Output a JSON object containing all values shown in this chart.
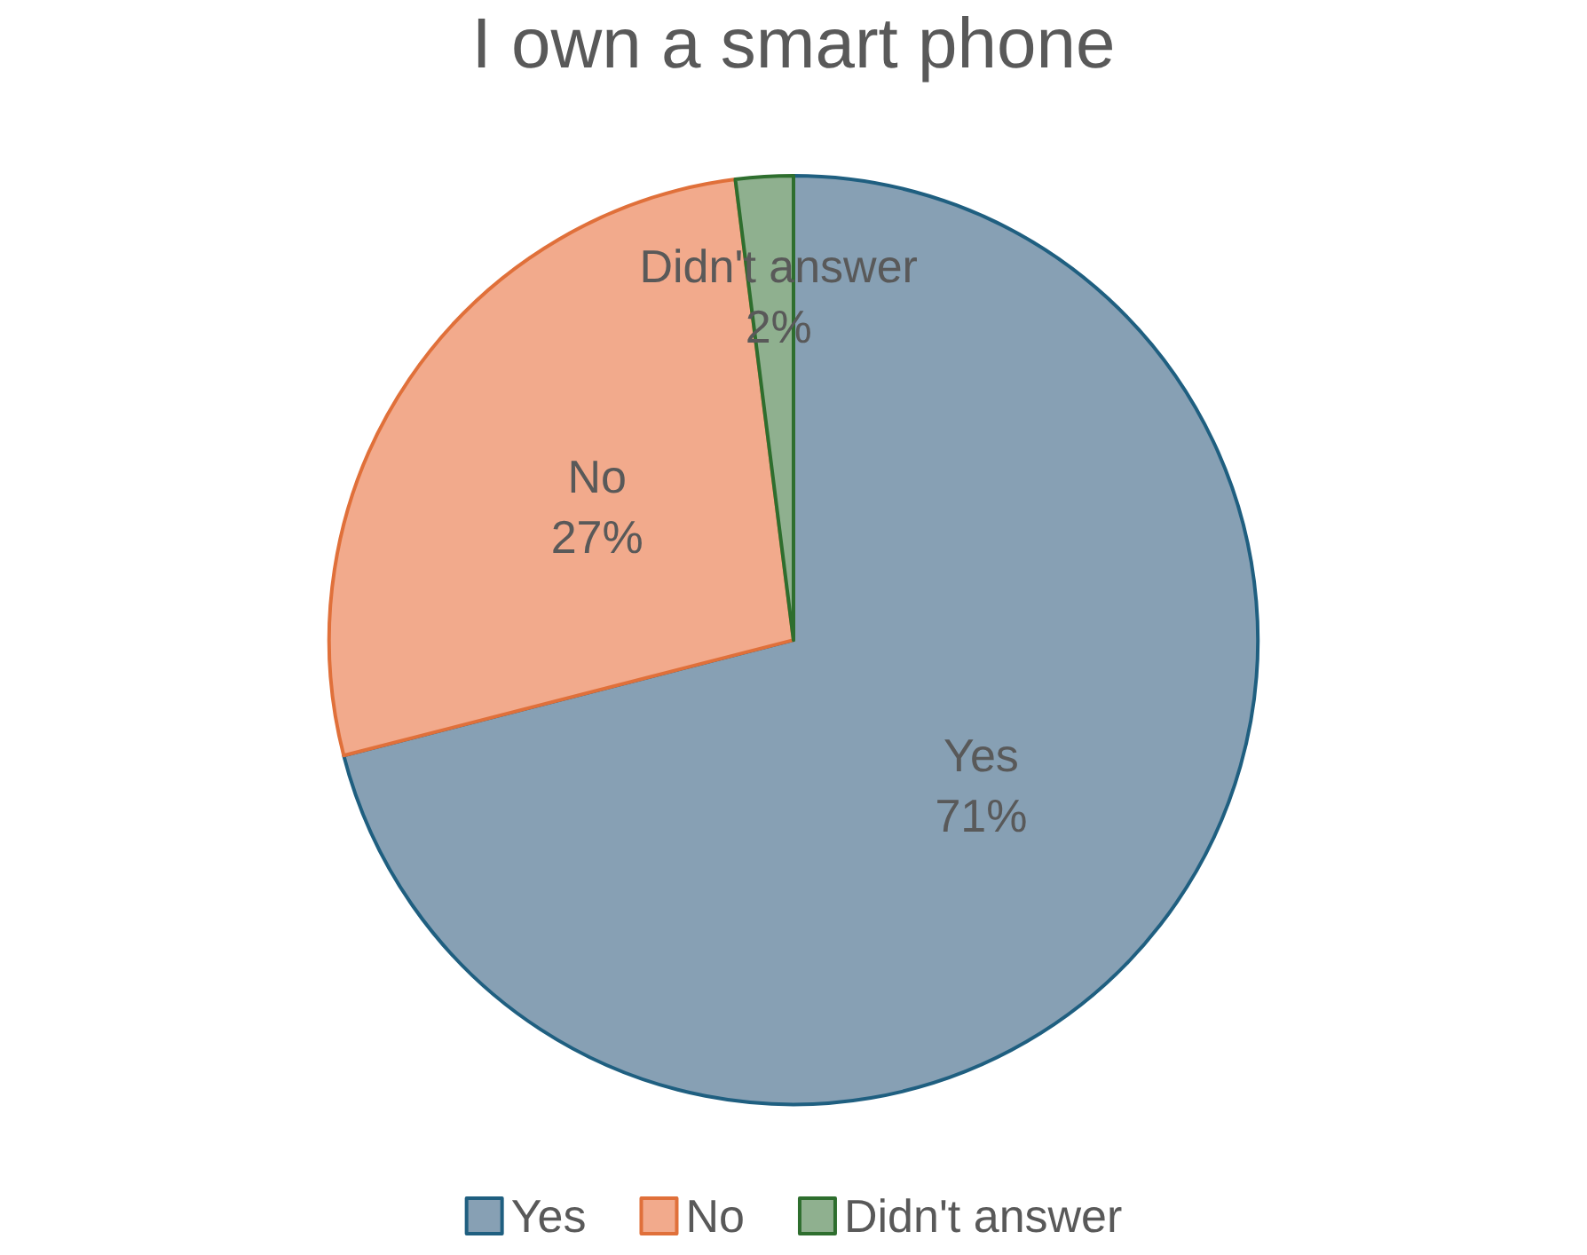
{
  "chart_data": {
    "type": "pie",
    "title": "I own a smart phone",
    "categories": [
      "Yes",
      "No",
      "Didn't answer"
    ],
    "values": [
      71,
      27,
      2
    ],
    "colors": [
      "#87a0b4",
      "#f2aa8c",
      "#8fb08f"
    ],
    "value_labels": [
      "71%",
      "27%",
      "2%"
    ],
    "legend": "bottom"
  }
}
